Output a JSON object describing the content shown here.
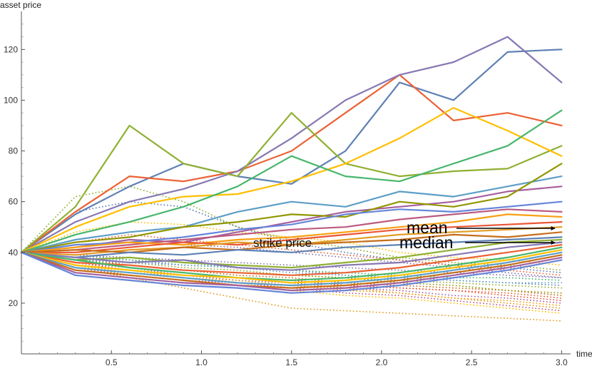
{
  "chart_data": {
    "type": "line",
    "title": "",
    "xlabel": "time",
    "ylabel": "asset price",
    "xlim": [
      0,
      3.05
    ],
    "ylim": [
      0,
      135
    ],
    "x_ticks": [
      0.5,
      1.0,
      1.5,
      2.0,
      2.5,
      3.0
    ],
    "x_tick_labels": [
      "0.5",
      "1.0",
      "1.5",
      "2.0",
      "2.5",
      "3.0"
    ],
    "y_ticks": [
      20,
      40,
      60,
      80,
      100,
      120
    ],
    "y_tick_labels": [
      "20",
      "40",
      "60",
      "80",
      "100",
      "120"
    ],
    "start_price": 40,
    "strike_price": 40,
    "mean_final": 51,
    "median_final": 46,
    "annotations": [
      {
        "text": "strike price",
        "x": 1.24,
        "y": 40
      },
      {
        "text": "mean",
        "x": 1.97,
        "y": 51
      },
      {
        "text": "median",
        "x": 1.9,
        "y": 45
      }
    ],
    "palette": [
      "#5e81b5",
      "#e19c24",
      "#8fb032",
      "#eb6235",
      "#8778b3",
      "#c56e1a",
      "#5d9ec7",
      "#ffbf00",
      "#a5609d",
      "#929600",
      "#e95536",
      "#6685d9",
      "#f89f13",
      "#bc5b80",
      "#47b66d"
    ],
    "grid": false,
    "legend": "none",
    "series_solid": [
      {
        "x": [
          0,
          0.3,
          0.6,
          0.9,
          1.2,
          1.5,
          1.8,
          2.1,
          2.4,
          2.7,
          3.0
        ],
        "y": [
          40,
          55,
          66,
          75,
          70,
          67,
          80,
          107,
          100,
          119,
          120
        ],
        "color": "#5e81b5"
      },
      {
        "x": [
          0,
          0.3,
          0.6,
          0.9,
          1.2,
          1.5,
          1.8,
          2.1,
          2.4,
          2.7,
          3.0
        ],
        "y": [
          40,
          56,
          70,
          68,
          72,
          80,
          95,
          110,
          92,
          95,
          90
        ],
        "color": "#eb6235"
      },
      {
        "x": [
          0,
          0.3,
          0.6,
          0.9,
          1.2,
          1.5,
          1.8,
          2.1,
          2.4,
          2.7,
          3.0
        ],
        "y": [
          40,
          52,
          60,
          65,
          72,
          85,
          100,
          110,
          115,
          125,
          107
        ],
        "color": "#8778b3"
      },
      {
        "x": [
          0,
          0.3,
          0.6,
          0.9,
          1.2,
          1.5,
          1.8,
          2.1,
          2.4,
          2.7,
          3.0
        ],
        "y": [
          40,
          58,
          90,
          75,
          70,
          95,
          75,
          70,
          72,
          73,
          82
        ],
        "color": "#8fb032"
      },
      {
        "x": [
          0,
          0.3,
          0.6,
          0.9,
          1.2,
          1.5,
          1.8,
          2.1,
          2.4,
          2.7,
          3.0
        ],
        "y": [
          40,
          50,
          58,
          62,
          63,
          68,
          75,
          85,
          97,
          88,
          78
        ],
        "color": "#ffbf00"
      },
      {
        "x": [
          0,
          0.3,
          0.6,
          0.9,
          1.2,
          1.5,
          1.8,
          2.1,
          2.4,
          2.7,
          3.0
        ],
        "y": [
          40,
          47,
          52,
          58,
          66,
          78,
          70,
          68,
          75,
          82,
          96
        ],
        "color": "#47b66d"
      },
      {
        "x": [
          0,
          0.3,
          0.6,
          0.9,
          1.2,
          1.5,
          1.8,
          2.1,
          2.4,
          2.7,
          3.0
        ],
        "y": [
          40,
          45,
          48,
          50,
          56,
          60,
          58,
          64,
          62,
          66,
          70
        ],
        "color": "#5d9ec7"
      },
      {
        "x": [
          0,
          0.3,
          0.6,
          0.9,
          1.2,
          1.5,
          1.8,
          2.1,
          2.4,
          2.7,
          3.0
        ],
        "y": [
          40,
          42,
          45,
          44,
          48,
          52,
          56,
          58,
          60,
          64,
          66
        ],
        "color": "#a5609d"
      },
      {
        "x": [
          0,
          0.3,
          0.6,
          0.9,
          1.2,
          1.5,
          1.8,
          2.1,
          2.4,
          2.7,
          3.0
        ],
        "y": [
          40,
          44,
          46,
          50,
          52,
          55,
          54,
          60,
          58,
          62,
          75
        ],
        "color": "#929600"
      },
      {
        "x": [
          0,
          0.3,
          0.6,
          0.9,
          1.2,
          1.5,
          1.8,
          2.1,
          2.4,
          2.7,
          3.0
        ],
        "y": [
          40,
          43,
          44,
          46,
          49,
          51,
          55,
          57,
          56,
          58,
          60
        ],
        "color": "#6685d9"
      },
      {
        "x": [
          0,
          0.3,
          0.6,
          0.9,
          1.2,
          1.5,
          1.8,
          2.1,
          2.4,
          2.7,
          3.0
        ],
        "y": [
          40,
          41,
          43,
          45,
          47,
          49,
          50,
          53,
          55,
          57,
          56
        ],
        "color": "#bc5b80"
      },
      {
        "x": [
          0,
          0.3,
          0.6,
          0.9,
          1.2,
          1.5,
          1.8,
          2.1,
          2.4,
          2.7,
          3.0
        ],
        "y": [
          40,
          42,
          44,
          43,
          45,
          46,
          48,
          50,
          52,
          55,
          54
        ],
        "color": "#f89f13"
      },
      {
        "x": [
          0,
          0.3,
          0.6,
          0.9,
          1.2,
          1.5,
          1.8,
          2.1,
          2.4,
          2.7,
          3.0
        ],
        "y": [
          40,
          40,
          42,
          44,
          43,
          45,
          47,
          49,
          50,
          51,
          52
        ],
        "color": "#e95536"
      },
      {
        "x": [
          0,
          0.3,
          0.6,
          0.9,
          1.2,
          1.5,
          1.8,
          2.1,
          2.4,
          2.7,
          3.0
        ],
        "y": [
          40,
          39,
          41,
          42,
          44,
          43,
          45,
          47,
          48,
          49,
          50
        ],
        "color": "#e19c24"
      },
      {
        "x": [
          0,
          0.3,
          0.6,
          0.9,
          1.2,
          1.5,
          1.8,
          2.1,
          2.4,
          2.7,
          3.0
        ],
        "y": [
          40,
          41,
          40,
          42,
          41,
          43,
          44,
          45,
          47,
          46,
          48
        ],
        "color": "#c56e1a"
      },
      {
        "x": [
          0,
          0.3,
          0.6,
          0.9,
          1.2,
          1.5,
          1.8,
          2.1,
          2.4,
          2.7,
          3.0
        ],
        "y": [
          40,
          38,
          40,
          39,
          41,
          40,
          42,
          43,
          44,
          45,
          46
        ],
        "color": "#5e81b5"
      },
      {
        "x": [
          0,
          0.3,
          0.6,
          0.9,
          1.2,
          1.5,
          1.8,
          2.1,
          2.4,
          2.7,
          3.0
        ],
        "y": [
          40,
          37,
          38,
          36,
          35,
          34,
          36,
          38,
          41,
          44,
          45
        ],
        "color": "#8fb032"
      },
      {
        "x": [
          0,
          0.3,
          0.6,
          0.9,
          1.2,
          1.5,
          1.8,
          2.1,
          2.4,
          2.7,
          3.0
        ],
        "y": [
          40,
          38,
          36,
          37,
          34,
          33,
          35,
          36,
          39,
          42,
          44
        ],
        "color": "#8778b3"
      },
      {
        "x": [
          0,
          0.3,
          0.6,
          0.9,
          1.2,
          1.5,
          1.8,
          2.1,
          2.4,
          2.7,
          3.0
        ],
        "y": [
          40,
          36,
          35,
          33,
          32,
          31,
          32,
          34,
          37,
          40,
          43
        ],
        "color": "#eb6235"
      },
      {
        "x": [
          0,
          0.3,
          0.6,
          0.9,
          1.2,
          1.5,
          1.8,
          2.1,
          2.4,
          2.7,
          3.0
        ],
        "y": [
          40,
          37,
          34,
          32,
          30,
          29,
          30,
          32,
          35,
          38,
          42
        ],
        "color": "#47b66d"
      },
      {
        "x": [
          0,
          0.3,
          0.6,
          0.9,
          1.2,
          1.5,
          1.8,
          2.1,
          2.4,
          2.7,
          3.0
        ],
        "y": [
          40,
          35,
          33,
          31,
          30,
          28,
          29,
          31,
          34,
          37,
          41
        ],
        "color": "#ffbf00"
      },
      {
        "x": [
          0,
          0.3,
          0.6,
          0.9,
          1.2,
          1.5,
          1.8,
          2.1,
          2.4,
          2.7,
          3.0
        ],
        "y": [
          40,
          34,
          32,
          30,
          28,
          27,
          28,
          30,
          33,
          36,
          40
        ],
        "color": "#5d9ec7"
      },
      {
        "x": [
          0,
          0.3,
          0.6,
          0.9,
          1.2,
          1.5,
          1.8,
          2.1,
          2.4,
          2.7,
          3.0
        ],
        "y": [
          40,
          33,
          31,
          29,
          27,
          26,
          27,
          29,
          32,
          35,
          39
        ],
        "color": "#c56e1a"
      },
      {
        "x": [
          0,
          0.3,
          0.6,
          0.9,
          1.2,
          1.5,
          1.8,
          2.1,
          2.4,
          2.7,
          3.0
        ],
        "y": [
          40,
          32,
          30,
          28,
          27,
          25,
          26,
          28,
          31,
          34,
          38
        ],
        "color": "#a5609d"
      },
      {
        "x": [
          0,
          0.3,
          0.6,
          0.9,
          1.2,
          1.5,
          1.8,
          2.1,
          2.4,
          2.7,
          3.0
        ],
        "y": [
          40,
          31,
          29,
          27,
          26,
          24,
          25,
          27,
          30,
          33,
          37
        ],
        "color": "#6685d9"
      }
    ],
    "series_dotted": [
      {
        "x": [
          0,
          0.3,
          0.6,
          0.9,
          1.2,
          1.5,
          1.8,
          2.1,
          2.4,
          2.7,
          3.0
        ],
        "y": [
          40,
          36,
          33,
          30,
          28,
          27,
          25,
          24,
          22,
          20,
          18
        ],
        "color": "#e19c24"
      },
      {
        "x": [
          0,
          0.3,
          0.6,
          0.9,
          1.2,
          1.5,
          1.8,
          2.1,
          2.4,
          2.7,
          3.0
        ],
        "y": [
          40,
          35,
          31,
          29,
          27,
          25,
          23,
          22,
          20,
          18,
          16
        ],
        "color": "#ffbf00"
      },
      {
        "x": [
          0,
          0.3,
          0.6,
          0.9,
          1.2,
          1.5,
          1.8,
          2.1,
          2.4,
          2.7,
          3.0
        ],
        "y": [
          40,
          34,
          30,
          26,
          22,
          18,
          17,
          16,
          15,
          14,
          13
        ],
        "color": "#e19c24"
      },
      {
        "x": [
          0,
          0.3,
          0.6,
          0.9,
          1.2,
          1.5,
          1.8,
          2.1,
          2.4,
          2.7,
          3.0
        ],
        "y": [
          40,
          37,
          34,
          32,
          30,
          29,
          27,
          26,
          25,
          24,
          22
        ],
        "color": "#eb6235"
      },
      {
        "x": [
          0,
          0.3,
          0.6,
          0.9,
          1.2,
          1.5,
          1.8,
          2.1,
          2.4,
          2.7,
          3.0
        ],
        "y": [
          40,
          38,
          36,
          34,
          33,
          31,
          30,
          29,
          28,
          27,
          26
        ],
        "color": "#8fb032"
      },
      {
        "x": [
          0,
          0.3,
          0.6,
          0.9,
          1.2,
          1.5,
          1.8,
          2.1,
          2.4,
          2.7,
          3.0
        ],
        "y": [
          40,
          39,
          37,
          35,
          34,
          33,
          31,
          30,
          29,
          28,
          27
        ],
        "color": "#5e81b5"
      },
      {
        "x": [
          0,
          0.3,
          0.6,
          0.9,
          1.2,
          1.5,
          1.8,
          2.1,
          2.4,
          2.7,
          3.0
        ],
        "y": [
          40,
          38,
          35,
          33,
          31,
          30,
          28,
          27,
          26,
          25,
          23
        ],
        "color": "#c56e1a"
      },
      {
        "x": [
          0,
          0.3,
          0.6,
          0.9,
          1.2,
          1.5,
          1.8,
          2.1,
          2.4,
          2.7,
          3.0
        ],
        "y": [
          40,
          36,
          34,
          31,
          29,
          28,
          26,
          25,
          23,
          22,
          20
        ],
        "color": "#a5609d"
      },
      {
        "x": [
          0,
          0.3,
          0.6,
          0.9,
          1.2,
          1.5,
          1.8,
          2.1,
          2.4,
          2.7,
          3.0
        ],
        "y": [
          40,
          37,
          35,
          33,
          32,
          31,
          30,
          28,
          27,
          25,
          24
        ],
        "color": "#929600"
      },
      {
        "x": [
          0,
          0.3,
          0.6,
          0.9,
          1.2,
          1.5,
          1.8,
          2.1,
          2.4,
          2.7,
          3.0
        ],
        "y": [
          40,
          35,
          32,
          30,
          29,
          27,
          26,
          24,
          22,
          21,
          19
        ],
        "color": "#f89f13"
      },
      {
        "x": [
          0,
          0.3,
          0.6,
          0.9,
          1.2,
          1.5,
          1.8,
          2.1,
          2.4,
          2.7,
          3.0
        ],
        "y": [
          40,
          39,
          38,
          37,
          36,
          35,
          34,
          33,
          32,
          31,
          30
        ],
        "color": "#8778b3"
      },
      {
        "x": [
          0,
          0.3,
          0.6,
          0.9,
          1.2,
          1.5,
          1.8,
          2.1,
          2.4,
          2.7,
          3.0
        ],
        "y": [
          40,
          38,
          37,
          36,
          34,
          33,
          32,
          31,
          30,
          30,
          29
        ],
        "color": "#47b66d"
      },
      {
        "x": [
          0,
          0.3,
          0.6,
          0.9,
          1.2,
          1.5,
          1.8,
          2.1,
          2.4,
          2.7,
          3.0
        ],
        "y": [
          40,
          37,
          36,
          35,
          34,
          32,
          31,
          30,
          29,
          28,
          28
        ],
        "color": "#5d9ec7"
      },
      {
        "x": [
          0,
          0.3,
          0.6,
          0.9,
          1.2,
          1.5,
          1.8,
          2.1,
          2.4,
          2.7,
          3.0
        ],
        "y": [
          40,
          36,
          33,
          31,
          30,
          29,
          27,
          26,
          25,
          23,
          21
        ],
        "color": "#e95536"
      },
      {
        "x": [
          0,
          0.3,
          0.6,
          0.9,
          1.2,
          1.5,
          1.8,
          2.1,
          2.4,
          2.7,
          3.0
        ],
        "y": [
          40,
          34,
          31,
          29,
          28,
          26,
          24,
          23,
          21,
          19,
          17
        ],
        "color": "#bc5b80"
      },
      {
        "x": [
          0,
          0.3,
          0.6,
          0.9,
          1.2,
          1.5,
          1.8,
          2.1,
          2.4,
          2.7,
          3.0
        ],
        "y": [
          40,
          56,
          60,
          58,
          50,
          44,
          40,
          37,
          35,
          34,
          32
        ],
        "color": "#5e81b5"
      },
      {
        "x": [
          0,
          0.3,
          0.6,
          0.9,
          1.2,
          1.5,
          1.8,
          2.1,
          2.4,
          2.7,
          3.0
        ],
        "y": [
          40,
          62,
          66,
          60,
          50,
          45,
          42,
          38,
          36,
          35,
          33
        ],
        "color": "#8fb032"
      },
      {
        "x": [
          0,
          0.3,
          0.6,
          0.9,
          1.2,
          1.5,
          1.8,
          2.1,
          2.4,
          2.7,
          3.0
        ],
        "y": [
          40,
          48,
          52,
          51,
          48,
          46,
          44,
          40,
          38,
          37,
          35
        ],
        "color": "#ffbf00"
      },
      {
        "x": [
          0,
          0.3,
          0.6,
          0.9,
          1.2,
          1.5,
          1.8,
          2.1,
          2.4,
          2.7,
          3.0
        ],
        "y": [
          40,
          44,
          47,
          45,
          43,
          41,
          39,
          37,
          35,
          33,
          31
        ],
        "color": "#eb6235"
      },
      {
        "x": [
          0,
          0.3,
          0.6,
          0.9,
          1.2,
          1.5,
          1.8,
          2.1,
          2.4,
          2.7,
          3.0
        ],
        "y": [
          40,
          42,
          44,
          43,
          42,
          40,
          38,
          36,
          34,
          32,
          30
        ],
        "color": "#8778b3"
      }
    ]
  }
}
